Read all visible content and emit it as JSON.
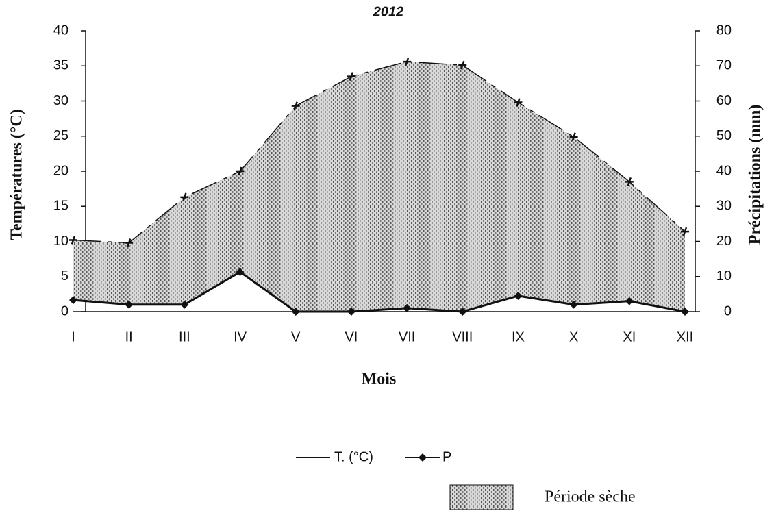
{
  "chart_data": {
    "type": "ombrothermic",
    "title": "2012",
    "x_label": "Mois",
    "y_label": "Températures (°C)",
    "y2_label": "Précipitations (mm)",
    "categories": [
      "I",
      "II",
      "III",
      "IV",
      "V",
      "VI",
      "VII",
      "VIII",
      "IX",
      "X",
      "XI",
      "XII"
    ],
    "series": [
      {
        "name": "T. (°C)",
        "color": "#111111",
        "values": [
          10.2,
          9.8,
          16.3,
          20,
          29.3,
          33.5,
          35.6,
          35.1,
          29.8,
          24.9,
          18.5,
          11.4
        ]
      },
      {
        "name": "P",
        "color": "#111111",
        "axis": "y2",
        "values": [
          3.3,
          2,
          2,
          11.3,
          0,
          0,
          1,
          0,
          4.5,
          2,
          3,
          0
        ]
      }
    ],
    "area_label": "Période sèche",
    "ylim": [
      0,
      40
    ],
    "yticks": [
      0,
      5,
      10,
      15,
      20,
      25,
      30,
      35,
      40
    ],
    "y2lim": [
      0,
      80
    ],
    "y2ticks": [
      0,
      10,
      20,
      30,
      40,
      50,
      60,
      70,
      80
    ]
  }
}
